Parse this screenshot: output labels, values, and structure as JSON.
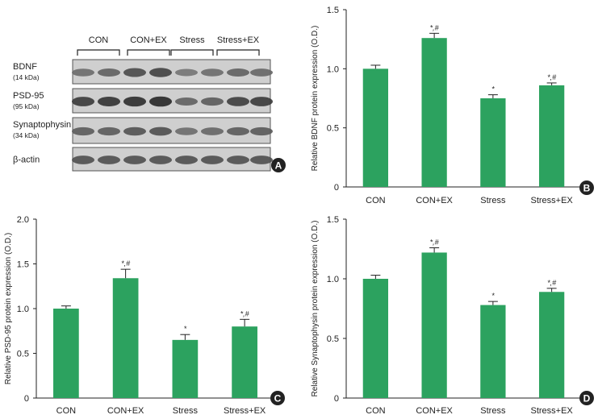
{
  "blot": {
    "panel_letter": "A",
    "group_labels": [
      "CON",
      "CON+EX",
      "Stress",
      "Stress+EX"
    ],
    "bands": [
      {
        "name": "BDNF",
        "size": "(14 kDa)",
        "intensity": [
          0.55,
          0.62,
          0.75,
          0.8,
          0.5,
          0.55,
          0.62,
          0.58
        ]
      },
      {
        "name": "PSD-95",
        "size": "(95 kDa)",
        "intensity": [
          0.85,
          0.88,
          0.92,
          0.95,
          0.62,
          0.65,
          0.82,
          0.85
        ]
      },
      {
        "name": "Synaptophysin",
        "size": "(34 kDa)",
        "intensity": [
          0.65,
          0.65,
          0.7,
          0.72,
          0.55,
          0.58,
          0.65,
          0.66
        ]
      },
      {
        "name": "β-actin",
        "size": "",
        "intensity": [
          0.72,
          0.72,
          0.72,
          0.72,
          0.72,
          0.72,
          0.72,
          0.72
        ]
      }
    ]
  },
  "chart_data": [
    {
      "type": "bar",
      "panel_letter": "B",
      "ylabel": "Relative BDNF protein expression (O.D.)",
      "categories": [
        "CON",
        "CON+EX",
        "Stress",
        "Stress+EX"
      ],
      "values": [
        1.0,
        1.26,
        0.75,
        0.86
      ],
      "errors": [
        0.03,
        0.04,
        0.03,
        0.02
      ],
      "annotations": [
        "",
        "*,#",
        "*",
        "*,#"
      ],
      "ylim": [
        0,
        1.5
      ],
      "yticks": [
        "0",
        "0.5",
        "1.0",
        "1.5"
      ],
      "ytick_values": [
        0,
        0.5,
        1.0,
        1.5
      ],
      "bar_color": "#2ca25f"
    },
    {
      "type": "bar",
      "panel_letter": "C",
      "ylabel": "Relative PSD-95 protein expression (O.D.)",
      "categories": [
        "CON",
        "CON+EX",
        "Stress",
        "Stress+EX"
      ],
      "values": [
        1.0,
        1.34,
        0.65,
        0.8
      ],
      "errors": [
        0.03,
        0.1,
        0.06,
        0.08
      ],
      "annotations": [
        "",
        "*,#",
        "*",
        "*,#"
      ],
      "ylim": [
        0,
        2.0
      ],
      "yticks": [
        "0",
        "0.5",
        "1.0",
        "1.5",
        "2.0"
      ],
      "ytick_values": [
        0,
        0.5,
        1.0,
        1.5,
        2.0
      ],
      "bar_color": "#2ca25f"
    },
    {
      "type": "bar",
      "panel_letter": "D",
      "ylabel": "Relative Synaptophysin protein expression (O.D.)",
      "categories": [
        "CON",
        "CON+EX",
        "Stress",
        "Stress+EX"
      ],
      "values": [
        1.0,
        1.22,
        0.78,
        0.89
      ],
      "errors": [
        0.03,
        0.04,
        0.03,
        0.03
      ],
      "annotations": [
        "",
        "*,#",
        "*",
        "*,#"
      ],
      "ylim": [
        0,
        1.5
      ],
      "yticks": [
        "0",
        "0.5",
        "1.0",
        "1.5"
      ],
      "ytick_values": [
        0,
        0.5,
        1.0,
        1.5
      ],
      "bar_color": "#2ca25f"
    }
  ]
}
